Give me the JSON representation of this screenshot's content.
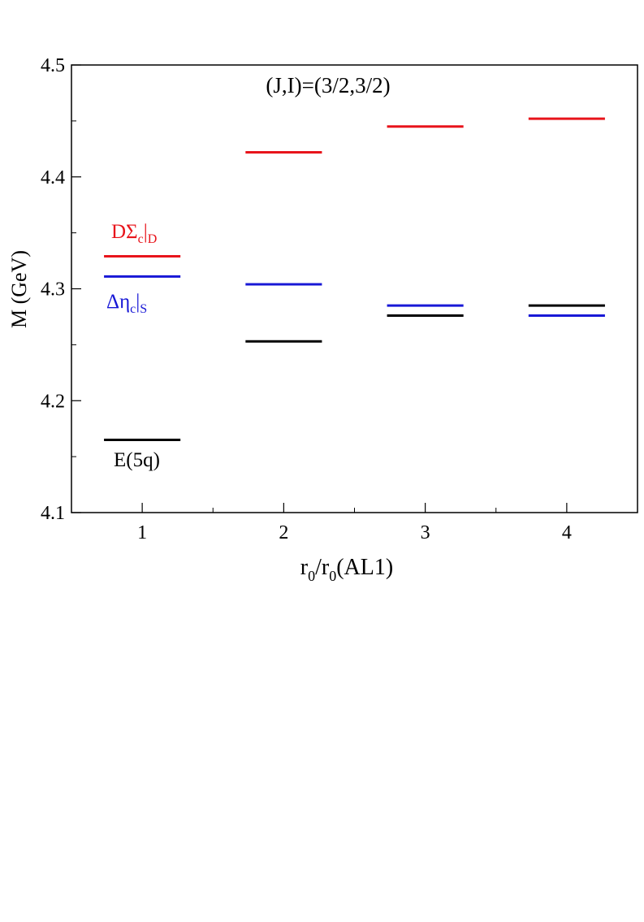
{
  "chart_data": {
    "type": "scatter",
    "title": "(J,I)=(3/2,3/2)",
    "xlabel": {
      "base": "r",
      "sub": "0",
      "mid": "/r",
      "sub2": "0",
      "tail": "(AL1)"
    },
    "ylabel": "M (GeV)",
    "xlim": [
      0.5,
      4.5
    ],
    "ylim": [
      4.1,
      4.5
    ],
    "x_ticks": [
      "1",
      "2",
      "3",
      "4"
    ],
    "y_ticks": [
      "4.1",
      "4.2",
      "4.3",
      "4.4",
      "4.5"
    ],
    "grid": false,
    "series": [
      {
        "key": "dsigma",
        "color": "#e8141b",
        "x": [
          1,
          2,
          3,
          4
        ],
        "values": [
          4.329,
          4.422,
          4.445,
          4.452
        ]
      },
      {
        "key": "deltaeta",
        "color": "#1818d6",
        "x": [
          1,
          2,
          3,
          4
        ],
        "values": [
          4.311,
          4.304,
          4.285,
          4.276
        ]
      },
      {
        "key": "e5q",
        "color": "#000000",
        "x": [
          1,
          2,
          3,
          4
        ],
        "values": [
          4.165,
          4.253,
          4.276,
          4.285
        ]
      }
    ],
    "annotations": {
      "dsigma": {
        "main": "DΣ",
        "sub": "c",
        "sep": "|",
        "sub2": "D",
        "color": "#e8141b"
      },
      "deltaeta": {
        "main": "Δη",
        "sub": "c",
        "sep": "|",
        "sub2": "S",
        "color": "#1818d6"
      },
      "e5q": {
        "main": "E(5q)",
        "color": "#000000"
      }
    }
  }
}
